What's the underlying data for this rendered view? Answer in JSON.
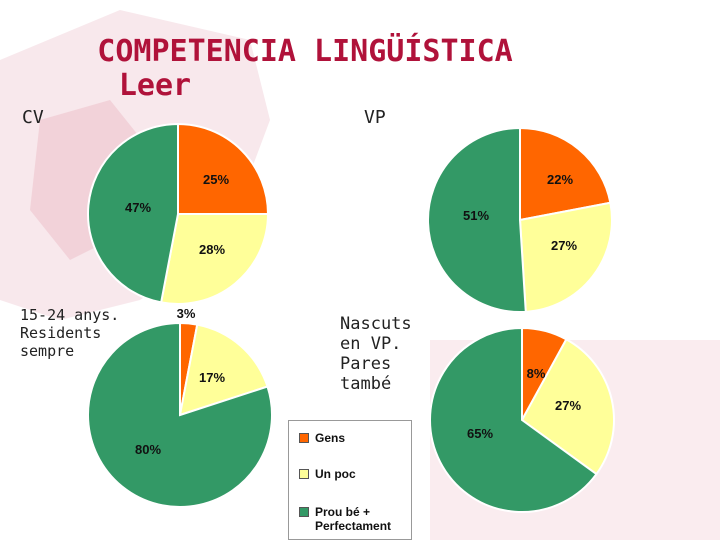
{
  "title": {
    "line1": "COMPETENCIA LINGÜÍSTICA",
    "line2": "Leer"
  },
  "labels": {
    "cv": "CV",
    "vp": "VP",
    "young": "15-24 anys.\nResidents\nsempre",
    "born": "Nascuts\nen VP.\nPares\ntambé"
  },
  "colors": {
    "gens": "#ff6600",
    "un_poc": "#ffff99",
    "prou_be": "#339966",
    "title": "#b0123a"
  },
  "legend": [
    {
      "label": "Gens",
      "color": "#ff6600"
    },
    {
      "label": "Un poc",
      "color": "#ffff99"
    },
    {
      "label": "Prou bé + Perfectament",
      "color": "#339966"
    }
  ],
  "chart_data": [
    {
      "type": "pie",
      "title": "CV",
      "categories": [
        "Gens",
        "Un poc",
        "Prou bé + Perfectament"
      ],
      "values": [
        25,
        28,
        47
      ],
      "labels": [
        "25%",
        "28%",
        "47%"
      ]
    },
    {
      "type": "pie",
      "title": "VP",
      "categories": [
        "Gens",
        "Un poc",
        "Prou bé + Perfectament"
      ],
      "values": [
        22,
        27,
        51
      ],
      "labels": [
        "22%",
        "27%",
        "51%"
      ]
    },
    {
      "type": "pie",
      "title": "15-24 anys. Residents sempre",
      "categories": [
        "Gens",
        "Un poc",
        "Prou bé + Perfectament"
      ],
      "values": [
        3,
        17,
        80
      ],
      "labels": [
        "3%",
        "17%",
        "80%"
      ]
    },
    {
      "type": "pie",
      "title": "Nascuts en VP. Pares també",
      "categories": [
        "Gens",
        "Un poc",
        "Prou bé + Perfectament"
      ],
      "values": [
        8,
        27,
        65
      ],
      "labels": [
        "8%",
        "27%",
        "65%"
      ]
    }
  ]
}
